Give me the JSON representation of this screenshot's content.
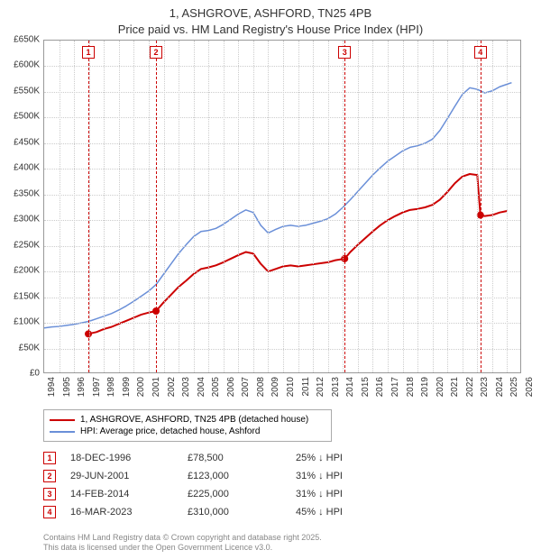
{
  "title": {
    "line1": "1, ASHGROVE, ASHFORD, TN25 4PB",
    "line2": "Price paid vs. HM Land Registry's House Price Index (HPI)",
    "fontsize": 13,
    "color": "#333333"
  },
  "chart": {
    "type": "line",
    "background_color": "#ffffff",
    "grid_color": "#cccccc",
    "border_color": "#999999",
    "x": {
      "min": 1994,
      "max": 2026,
      "tick_step": 1
    },
    "y": {
      "min": 0,
      "max": 650000,
      "tick_step": 50000,
      "tick_labels": [
        "£0",
        "£50K",
        "£100K",
        "£150K",
        "£200K",
        "£250K",
        "£300K",
        "£350K",
        "£400K",
        "£450K",
        "£500K",
        "£550K",
        "£600K",
        "£650K"
      ]
    },
    "series": [
      {
        "id": "price_paid",
        "label": "1, ASHGROVE, ASHFORD, TN25 4PB (detached house)",
        "color": "#cc0000",
        "line_width": 2,
        "data": [
          [
            1996.96,
            78500
          ],
          [
            1997.5,
            82000
          ],
          [
            1998.0,
            88000
          ],
          [
            1998.5,
            92000
          ],
          [
            1999.0,
            98000
          ],
          [
            1999.5,
            104000
          ],
          [
            2000.0,
            110000
          ],
          [
            2000.5,
            116000
          ],
          [
            2001.0,
            120000
          ],
          [
            2001.49,
            123000
          ],
          [
            2002.0,
            140000
          ],
          [
            2002.5,
            155000
          ],
          [
            2003.0,
            170000
          ],
          [
            2003.5,
            182000
          ],
          [
            2004.0,
            195000
          ],
          [
            2004.5,
            205000
          ],
          [
            2005.0,
            208000
          ],
          [
            2005.5,
            212000
          ],
          [
            2006.0,
            218000
          ],
          [
            2006.5,
            225000
          ],
          [
            2007.0,
            232000
          ],
          [
            2007.5,
            238000
          ],
          [
            2008.0,
            235000
          ],
          [
            2008.5,
            215000
          ],
          [
            2009.0,
            200000
          ],
          [
            2009.5,
            205000
          ],
          [
            2010.0,
            210000
          ],
          [
            2010.5,
            212000
          ],
          [
            2011.0,
            210000
          ],
          [
            2011.5,
            212000
          ],
          [
            2012.0,
            214000
          ],
          [
            2012.5,
            216000
          ],
          [
            2013.0,
            218000
          ],
          [
            2013.5,
            222000
          ],
          [
            2014.12,
            225000
          ],
          [
            2014.5,
            238000
          ],
          [
            2015.0,
            252000
          ],
          [
            2015.5,
            265000
          ],
          [
            2016.0,
            278000
          ],
          [
            2016.5,
            290000
          ],
          [
            2017.0,
            300000
          ],
          [
            2017.5,
            308000
          ],
          [
            2018.0,
            315000
          ],
          [
            2018.5,
            320000
          ],
          [
            2019.0,
            322000
          ],
          [
            2019.5,
            325000
          ],
          [
            2020.0,
            330000
          ],
          [
            2020.5,
            340000
          ],
          [
            2021.0,
            355000
          ],
          [
            2021.5,
            372000
          ],
          [
            2022.0,
            385000
          ],
          [
            2022.5,
            390000
          ],
          [
            2023.0,
            388000
          ],
          [
            2023.21,
            310000
          ],
          [
            2023.5,
            308000
          ],
          [
            2024.0,
            310000
          ],
          [
            2024.5,
            315000
          ],
          [
            2025.0,
            318000
          ]
        ],
        "sale_points": [
          [
            1996.96,
            78500
          ],
          [
            2001.49,
            123000
          ],
          [
            2014.12,
            225000
          ],
          [
            2023.21,
            310000
          ]
        ]
      },
      {
        "id": "hpi",
        "label": "HPI: Average price, detached house, Ashford",
        "color": "#6a8fd8",
        "line_width": 1.5,
        "data": [
          [
            1994.0,
            90000
          ],
          [
            1994.5,
            92000
          ],
          [
            1995.0,
            93000
          ],
          [
            1995.5,
            95000
          ],
          [
            1996.0,
            97000
          ],
          [
            1996.5,
            100000
          ],
          [
            1997.0,
            103000
          ],
          [
            1997.5,
            108000
          ],
          [
            1998.0,
            113000
          ],
          [
            1998.5,
            118000
          ],
          [
            1999.0,
            125000
          ],
          [
            1999.5,
            133000
          ],
          [
            2000.0,
            142000
          ],
          [
            2000.5,
            152000
          ],
          [
            2001.0,
            162000
          ],
          [
            2001.5,
            175000
          ],
          [
            2002.0,
            195000
          ],
          [
            2002.5,
            215000
          ],
          [
            2003.0,
            235000
          ],
          [
            2003.5,
            252000
          ],
          [
            2004.0,
            268000
          ],
          [
            2004.5,
            278000
          ],
          [
            2005.0,
            280000
          ],
          [
            2005.5,
            284000
          ],
          [
            2006.0,
            292000
          ],
          [
            2006.5,
            302000
          ],
          [
            2007.0,
            312000
          ],
          [
            2007.5,
            320000
          ],
          [
            2008.0,
            315000
          ],
          [
            2008.5,
            290000
          ],
          [
            2009.0,
            275000
          ],
          [
            2009.5,
            282000
          ],
          [
            2010.0,
            288000
          ],
          [
            2010.5,
            290000
          ],
          [
            2011.0,
            288000
          ],
          [
            2011.5,
            290000
          ],
          [
            2012.0,
            294000
          ],
          [
            2012.5,
            298000
          ],
          [
            2013.0,
            303000
          ],
          [
            2013.5,
            312000
          ],
          [
            2014.0,
            325000
          ],
          [
            2014.5,
            340000
          ],
          [
            2015.0,
            356000
          ],
          [
            2015.5,
            372000
          ],
          [
            2016.0,
            388000
          ],
          [
            2016.5,
            402000
          ],
          [
            2017.0,
            415000
          ],
          [
            2017.5,
            425000
          ],
          [
            2018.0,
            435000
          ],
          [
            2018.5,
            442000
          ],
          [
            2019.0,
            445000
          ],
          [
            2019.5,
            450000
          ],
          [
            2020.0,
            458000
          ],
          [
            2020.5,
            475000
          ],
          [
            2021.0,
            498000
          ],
          [
            2021.5,
            522000
          ],
          [
            2022.0,
            545000
          ],
          [
            2022.5,
            558000
          ],
          [
            2023.0,
            555000
          ],
          [
            2023.5,
            548000
          ],
          [
            2024.0,
            552000
          ],
          [
            2024.5,
            560000
          ],
          [
            2025.0,
            565000
          ],
          [
            2025.3,
            568000
          ]
        ]
      }
    ],
    "markers": [
      {
        "n": "1",
        "x": 1996.96
      },
      {
        "n": "2",
        "x": 2001.49
      },
      {
        "n": "3",
        "x": 2014.12
      },
      {
        "n": "4",
        "x": 2023.21
      }
    ],
    "marker_color": "#cc0000"
  },
  "legend": {
    "border_color": "#aaaaaa",
    "fontsize": 10
  },
  "events": [
    {
      "n": "1",
      "date": "18-DEC-1996",
      "price": "£78,500",
      "diff": "25% ↓ HPI"
    },
    {
      "n": "2",
      "date": "29-JUN-2001",
      "price": "£123,000",
      "diff": "31% ↓ HPI"
    },
    {
      "n": "3",
      "date": "14-FEB-2014",
      "price": "£225,000",
      "diff": "31% ↓ HPI"
    },
    {
      "n": "4",
      "date": "16-MAR-2023",
      "price": "£310,000",
      "diff": "45% ↓ HPI"
    }
  ],
  "footer": {
    "line1": "Contains HM Land Registry data © Crown copyright and database right 2025.",
    "line2": "This data is licensed under the Open Government Licence v3.0.",
    "color": "#888888",
    "fontsize": 9
  }
}
